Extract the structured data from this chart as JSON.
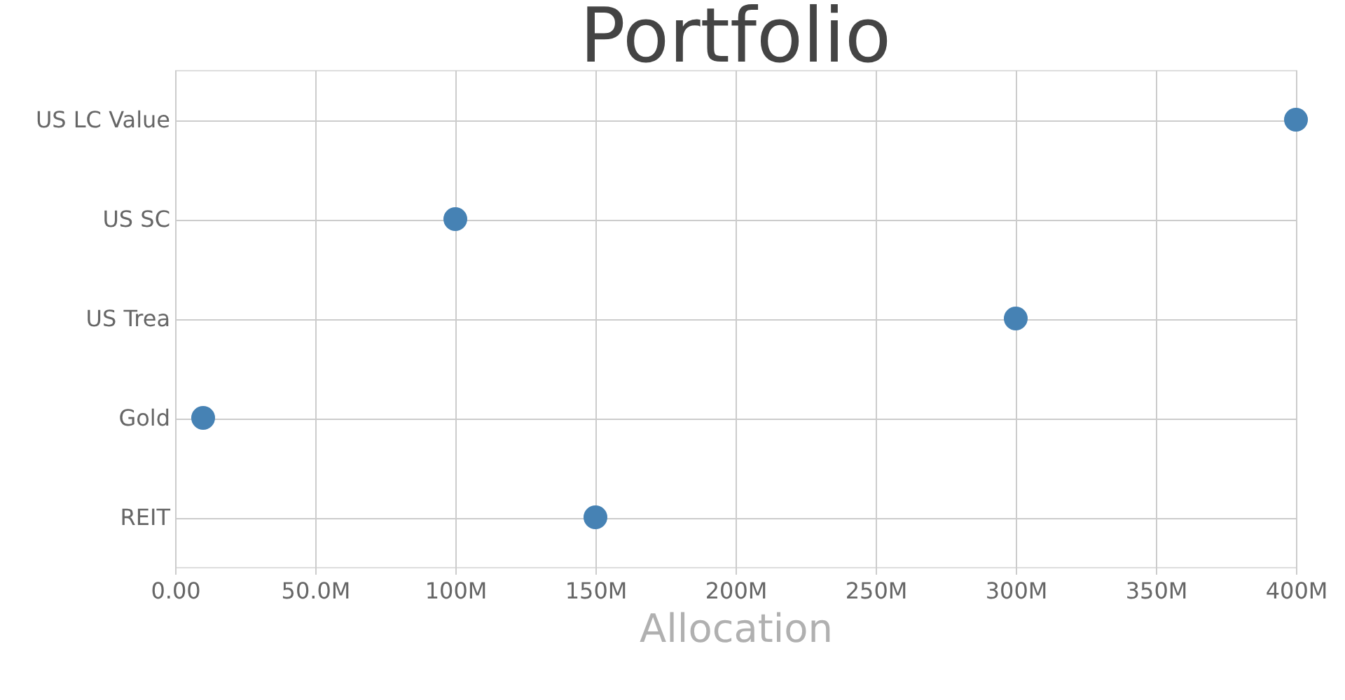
{
  "chart_data": {
    "type": "scatter",
    "title": "Portfolio",
    "xlabel": "Allocation",
    "orientation": "horizontal",
    "categories": [
      "US LC Value",
      "US SC",
      "US Trea",
      "Gold",
      "REIT"
    ],
    "values": [
      400000000,
      100000000,
      300000000,
      10000000,
      150000000
    ],
    "color": "#4682b4",
    "marker": "circle",
    "grid": true,
    "xlim": [
      0,
      400000000
    ],
    "xticks": [
      {
        "value": 0,
        "label": "0.00"
      },
      {
        "value": 50000000,
        "label": "50.0M"
      },
      {
        "value": 100000000,
        "label": "100M"
      },
      {
        "value": 150000000,
        "label": "150M"
      },
      {
        "value": 200000000,
        "label": "200M"
      },
      {
        "value": 250000000,
        "label": "250M"
      },
      {
        "value": 300000000,
        "label": "300M"
      },
      {
        "value": 350000000,
        "label": "350M"
      },
      {
        "value": 400000000,
        "label": "400M"
      }
    ]
  }
}
